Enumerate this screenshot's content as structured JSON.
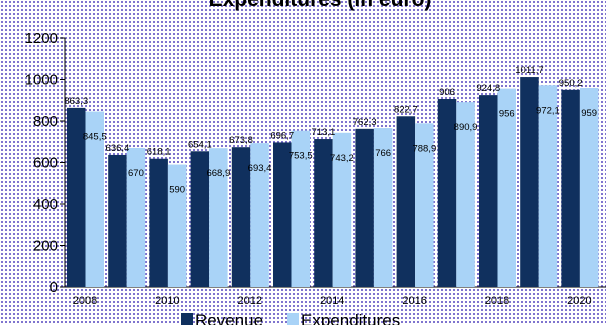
{
  "chart_data": {
    "type": "bar",
    "title": "Expenditures (in euro)",
    "categories": [
      "2008",
      "2009",
      "2010",
      "2011",
      "2012",
      "2013",
      "2014",
      "2015",
      "2016",
      "2017",
      "2018",
      "2019",
      "2020"
    ],
    "x_tick_labels": [
      "2008",
      "2010",
      "2012",
      "2014",
      "2016",
      "2018",
      "2020"
    ],
    "series": [
      {
        "name": "Revenue",
        "color": "#10305e",
        "values": [
          863.3,
          636.4,
          618.1,
          654.1,
          673.8,
          696.7,
          713.1,
          762.3,
          822.7,
          906,
          924.8,
          1011.7,
          950.2
        ],
        "labels": [
          "863,3",
          "636,4",
          "618,1",
          "654,1",
          "673,8",
          "696,7",
          "713,1",
          "762,3",
          "822,7",
          "906",
          "924,8",
          "1011,7",
          "950,2"
        ]
      },
      {
        "name": "Expenditures",
        "color": "#a9d3f7",
        "values": [
          845.5,
          670,
          590,
          668.9,
          693.4,
          753.5,
          743.2,
          766,
          788.9,
          890.9,
          956,
          972.1,
          959
        ],
        "labels": [
          "845,5",
          "670",
          "590",
          "668,9",
          "693,4",
          "753,5",
          "743,2",
          "766",
          "788,9",
          "890,9",
          "956",
          "972,1",
          "959"
        ]
      }
    ],
    "y_ticks": [
      "0",
      "200",
      "400",
      "600",
      "800",
      "1000",
      "1200"
    ],
    "ylim": [
      0,
      1200
    ],
    "grid": false,
    "legend_position": "bottom"
  }
}
